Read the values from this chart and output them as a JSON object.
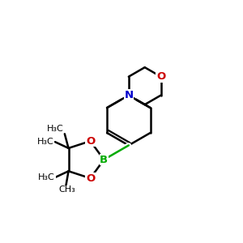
{
  "bg_color": "#ffffff",
  "bond_color": "#000000",
  "B_color": "#00aa00",
  "O_color": "#cc0000",
  "N_color": "#0000cc",
  "line_width": 1.8,
  "figsize": [
    3.0,
    3.0
  ],
  "dpi": 100,
  "xlim": [
    0,
    10
  ],
  "ylim": [
    0,
    10
  ]
}
